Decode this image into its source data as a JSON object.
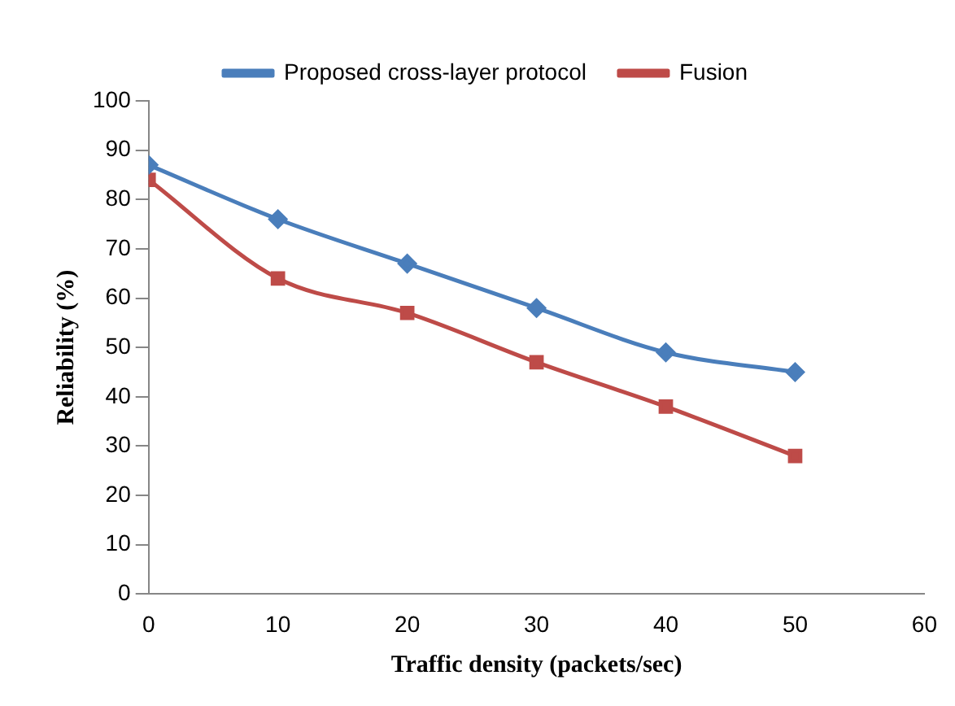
{
  "chart_data": {
    "type": "line",
    "xlabel": "Traffic density (packets/sec)",
    "ylabel": "Reliability (%)",
    "x": [
      0,
      10,
      20,
      30,
      40,
      50
    ],
    "series": [
      {
        "name": "Proposed cross-layer protocol",
        "color": "#4a7ebb",
        "marker": "diamond",
        "values": [
          87,
          76,
          67,
          58,
          49,
          45
        ]
      },
      {
        "name": "Fusion",
        "color": "#be4b48",
        "marker": "square",
        "values": [
          84,
          64,
          57,
          47,
          38,
          28
        ]
      }
    ],
    "xlim": [
      0,
      60
    ],
    "xticks": [
      0,
      10,
      20,
      30,
      40,
      50,
      60
    ],
    "ylim": [
      0,
      100
    ],
    "yticks": [
      0,
      10,
      20,
      30,
      40,
      50,
      60,
      70,
      80,
      90,
      100
    ],
    "grid": false,
    "legend": "top",
    "line_style": "solid"
  }
}
